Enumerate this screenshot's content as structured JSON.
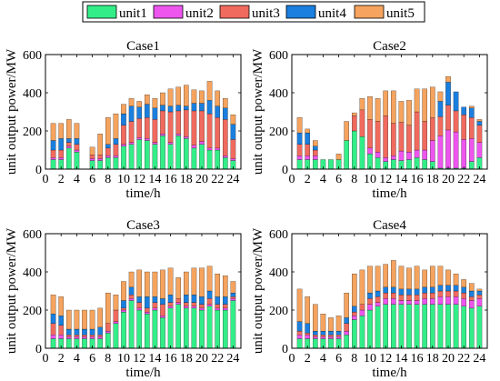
{
  "legend": {
    "items": [
      {
        "name": "unit1",
        "color": "#33ee88"
      },
      {
        "name": "unit2",
        "color": "#ee55ee"
      },
      {
        "name": "unit3",
        "color": "#f06a5e"
      },
      {
        "name": "unit4",
        "color": "#1a7fde"
      },
      {
        "name": "unit5",
        "color": "#f5a35e"
      }
    ]
  },
  "chart_data": [
    {
      "type": "bar",
      "stacked": true,
      "title": "Case1",
      "xlabel": "time/h",
      "ylabel": "unit output power/MW",
      "xlim": [
        0,
        25
      ],
      "ylim": [
        0,
        600
      ],
      "xticks": [
        "0",
        "2",
        "4",
        "6",
        "8",
        "10",
        "12",
        "14",
        "16",
        "18",
        "20",
        "22",
        "24"
      ],
      "yticks": [
        "0",
        "200",
        "400",
        "600"
      ],
      "x": [
        1,
        2,
        3,
        4,
        5,
        6,
        7,
        8,
        9,
        10,
        11,
        12,
        13,
        14,
        15,
        16,
        17,
        18,
        19,
        20,
        21,
        22,
        23,
        24
      ],
      "series": [
        {
          "name": "unit1",
          "values": [
            50,
            50,
            110,
            90,
            0,
            45,
            45,
            60,
            60,
            120,
            130,
            155,
            150,
            130,
            175,
            130,
            175,
            160,
            110,
            130,
            100,
            100,
            60,
            45
          ]
        },
        {
          "name": "unit2",
          "values": [
            10,
            10,
            10,
            10,
            0,
            10,
            10,
            10,
            10,
            10,
            10,
            10,
            10,
            10,
            10,
            10,
            10,
            10,
            15,
            15,
            10,
            10,
            10,
            10
          ]
        },
        {
          "name": "unit3",
          "values": [
            40,
            40,
            20,
            30,
            0,
            20,
            20,
            40,
            60,
            100,
            110,
            100,
            110,
            120,
            120,
            160,
            120,
            140,
            180,
            160,
            180,
            160,
            190,
            100
          ]
        },
        {
          "name": "unit4",
          "values": [
            50,
            60,
            20,
            30,
            0,
            0,
            0,
            20,
            30,
            60,
            80,
            60,
            70,
            60,
            30,
            30,
            30,
            20,
            40,
            40,
            70,
            60,
            60,
            80
          ]
        },
        {
          "name": "unit5",
          "values": [
            90,
            80,
            100,
            80,
            0,
            40,
            110,
            140,
            130,
            50,
            40,
            30,
            50,
            50,
            65,
            90,
            95,
            110,
            70,
            65,
            100,
            80,
            50,
            50
          ]
        }
      ]
    },
    {
      "type": "bar",
      "stacked": true,
      "title": "Case2",
      "xlabel": "time/h",
      "ylabel": "unit output power/MW",
      "xlim": [
        0,
        25
      ],
      "ylim": [
        0,
        600
      ],
      "xticks": [
        "0",
        "2",
        "4",
        "6",
        "8",
        "10",
        "12",
        "14",
        "16",
        "18",
        "20",
        "22",
        "24"
      ],
      "yticks": [
        "0",
        "200",
        "400",
        "600"
      ],
      "x": [
        1,
        2,
        3,
        4,
        5,
        6,
        7,
        8,
        9,
        10,
        11,
        12,
        13,
        14,
        15,
        16,
        17,
        18,
        19,
        20,
        21,
        22,
        23,
        24
      ],
      "series": [
        {
          "name": "unit1",
          "values": [
            50,
            50,
            50,
            50,
            50,
            50,
            150,
            200,
            170,
            80,
            60,
            40,
            50,
            45,
            50,
            60,
            50,
            40,
            5,
            5,
            5,
            5,
            40,
            60
          ]
        },
        {
          "name": "unit2",
          "values": [
            20,
            20,
            20,
            0,
            0,
            0,
            0,
            0,
            0,
            30,
            30,
            20,
            20,
            50,
            40,
            40,
            50,
            110,
            170,
            200,
            190,
            150,
            120,
            80
          ]
        },
        {
          "name": "unit3",
          "values": [
            60,
            60,
            30,
            0,
            0,
            0,
            0,
            80,
            140,
            150,
            160,
            220,
            170,
            150,
            140,
            200,
            150,
            120,
            100,
            130,
            110,
            130,
            110,
            90
          ]
        },
        {
          "name": "unit4",
          "values": [
            60,
            60,
            20,
            0,
            0,
            0,
            0,
            0,
            0,
            0,
            0,
            0,
            0,
            0,
            0,
            0,
            0,
            0,
            80,
            120,
            100,
            40,
            50,
            20
          ]
        },
        {
          "name": "unit5",
          "values": [
            80,
            20,
            30,
            0,
            0,
            30,
            100,
            15,
            60,
            120,
            120,
            130,
            170,
            110,
            130,
            120,
            170,
            160,
            50,
            30,
            0,
            0,
            10,
            10
          ]
        }
      ]
    },
    {
      "type": "bar",
      "stacked": true,
      "title": "Case3",
      "xlabel": "time/h",
      "ylabel": "unit output power/MW",
      "xlim": [
        0,
        25
      ],
      "ylim": [
        0,
        600
      ],
      "xticks": [
        "0",
        "2",
        "4",
        "6",
        "8",
        "10",
        "12",
        "14",
        "16",
        "18",
        "20",
        "22",
        "24"
      ],
      "yticks": [
        "0",
        "200",
        "400",
        "600"
      ],
      "x": [
        1,
        2,
        3,
        4,
        5,
        6,
        7,
        8,
        9,
        10,
        11,
        12,
        13,
        14,
        15,
        16,
        17,
        18,
        19,
        20,
        21,
        22,
        23,
        24
      ],
      "series": [
        {
          "name": "unit1",
          "values": [
            50,
            50,
            50,
            50,
            50,
            50,
            50,
            80,
            130,
            190,
            250,
            200,
            180,
            200,
            160,
            210,
            230,
            210,
            210,
            200,
            220,
            200,
            200,
            250
          ]
        },
        {
          "name": "unit2",
          "values": [
            20,
            20,
            10,
            10,
            10,
            10,
            10,
            10,
            10,
            10,
            10,
            10,
            10,
            10,
            10,
            10,
            10,
            10,
            10,
            10,
            10,
            10,
            10,
            10
          ]
        },
        {
          "name": "unit3",
          "values": [
            60,
            50,
            10,
            10,
            10,
            10,
            10,
            40,
            60,
            10,
            20,
            30,
            20,
            30,
            60,
            20,
            20,
            20,
            20,
            20,
            30,
            20,
            20,
            10
          ]
        },
        {
          "name": "unit4",
          "values": [
            50,
            50,
            30,
            30,
            30,
            30,
            40,
            0,
            0,
            40,
            40,
            30,
            60,
            30,
            30,
            40,
            0,
            40,
            40,
            40,
            40,
            40,
            40,
            20
          ]
        },
        {
          "name": "unit5",
          "values": [
            100,
            100,
            100,
            100,
            100,
            100,
            100,
            160,
            80,
            100,
            80,
            140,
            130,
            130,
            150,
            140,
            110,
            120,
            140,
            150,
            130,
            120,
            110,
            60
          ]
        }
      ]
    },
    {
      "type": "bar",
      "stacked": true,
      "title": "Case4",
      "xlabel": "time/h",
      "ylabel": "unit output power/MW",
      "xlim": [
        0,
        25
      ],
      "ylim": [
        0,
        600
      ],
      "xticks": [
        "0",
        "2",
        "4",
        "6",
        "8",
        "10",
        "12",
        "14",
        "16",
        "18",
        "20",
        "22",
        "24"
      ],
      "yticks": [
        "0",
        "200",
        "400",
        "600"
      ],
      "x": [
        1,
        2,
        3,
        4,
        5,
        6,
        7,
        8,
        9,
        10,
        11,
        12,
        13,
        14,
        15,
        16,
        17,
        18,
        19,
        20,
        21,
        22,
        23,
        24
      ],
      "series": [
        {
          "name": "unit1",
          "values": [
            50,
            50,
            50,
            50,
            50,
            50,
            70,
            150,
            170,
            200,
            220,
            230,
            230,
            230,
            230,
            230,
            230,
            230,
            230,
            230,
            230,
            220,
            210,
            220
          ]
        },
        {
          "name": "unit2",
          "values": [
            20,
            20,
            10,
            10,
            10,
            10,
            20,
            20,
            30,
            30,
            20,
            30,
            30,
            20,
            20,
            20,
            30,
            30,
            40,
            40,
            40,
            40,
            40,
            40
          ]
        },
        {
          "name": "unit3",
          "values": [
            20,
            10,
            10,
            10,
            10,
            10,
            40,
            20,
            30,
            30,
            30,
            30,
            30,
            30,
            30,
            30,
            30,
            30,
            30,
            30,
            30,
            30,
            20,
            20
          ]
        },
        {
          "name": "unit4",
          "values": [
            50,
            50,
            20,
            20,
            20,
            20,
            30,
            30,
            0,
            30,
            30,
            30,
            30,
            30,
            30,
            30,
            30,
            30,
            30,
            30,
            30,
            30,
            30,
            20
          ]
        },
        {
          "name": "unit5",
          "values": [
            170,
            140,
            140,
            90,
            70,
            80,
            130,
            170,
            180,
            140,
            130,
            120,
            140,
            120,
            110,
            120,
            90,
            110,
            100,
            80,
            60,
            40,
            40,
            10
          ]
        }
      ]
    }
  ]
}
